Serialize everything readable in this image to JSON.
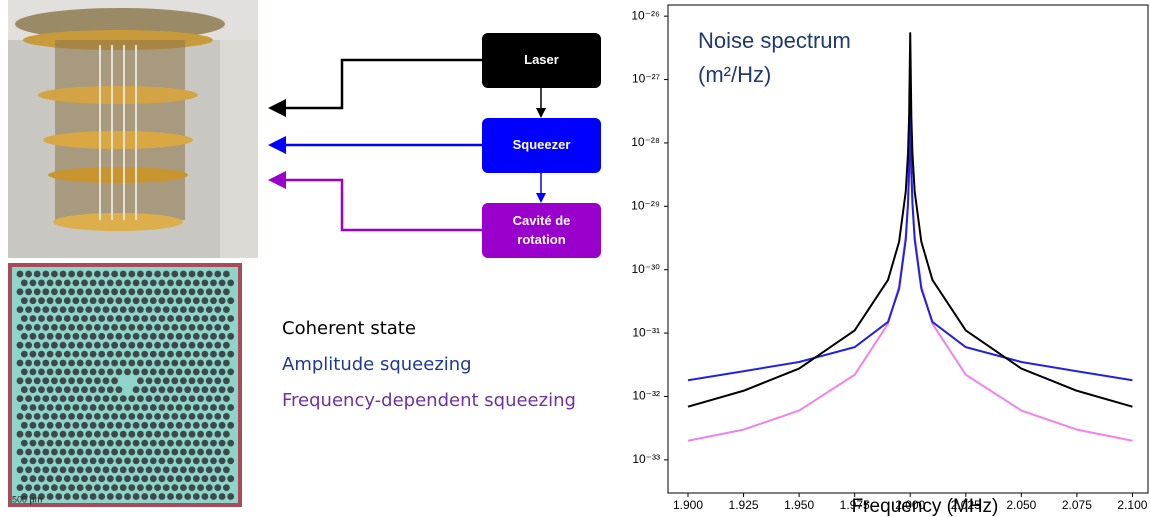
{
  "diagram": {
    "nodes": [
      {
        "label": "Laser",
        "color": "#000000"
      },
      {
        "label": "Squeezer",
        "color": "#0000ff"
      },
      {
        "label": "Cavité de rotation",
        "color": "#9900cc"
      }
    ]
  },
  "micrograph": {
    "scale_label": "500 µm"
  },
  "chart_data": {
    "type": "line",
    "title": "Noise spectrum",
    "ylabel": "(m²/Hz)",
    "xlabel": "Frequency (MHz)",
    "log_y": true,
    "x": [
      1.9,
      1.925,
      1.95,
      1.975,
      1.99,
      1.995,
      1.998,
      1.999,
      1.9995,
      2.0,
      2.0005,
      2.001,
      2.002,
      2.005,
      2.01,
      2.025,
      2.05,
      2.075,
      2.1
    ],
    "series": [
      {
        "name": "Coherent state",
        "color": "#000000",
        "text_color": "#000000",
        "values": [
          6.9e-33,
          1.23e-32,
          2.76e-32,
          1.1e-31,
          6.9e-31,
          2.76e-30,
          1.72e-29,
          6.8e-29,
          2.6e-28,
          5.4e-27,
          2.6e-28,
          6.8e-29,
          1.72e-29,
          2.76e-30,
          6.9e-31,
          1.1e-31,
          2.76e-32,
          1.23e-32,
          6.9e-33
        ]
      },
      {
        "name": "Amplitude squeezing",
        "color": "#2222dd",
        "text_color": "#1f3a93",
        "values": [
          1.8e-32,
          2.5e-32,
          3.5e-32,
          6e-32,
          1.5e-31,
          5e-31,
          3e-30,
          1.1e-29,
          4e-29,
          5e-28,
          4e-29,
          1.1e-29,
          3e-30,
          5e-31,
          1.5e-31,
          6e-32,
          3.5e-32,
          2.5e-32,
          1.8e-32
        ]
      },
      {
        "name": "Frequency-dependent squeezing",
        "color": "#ee82ee",
        "text_color": "#7030a0",
        "values": [
          2e-33,
          3e-33,
          6e-33,
          2.2e-32,
          1.4e-31,
          5.5e-31,
          3.4e-30,
          1.2e-29,
          3e-29,
          5.5e-29,
          3e-29,
          1.2e-29,
          3.4e-30,
          5.5e-31,
          1.4e-31,
          2.2e-32,
          6e-33,
          3e-33,
          2e-33
        ]
      }
    ],
    "xlim": [
      1.891,
      2.107
    ],
    "ylim": [
      3e-34,
      1.5e-26
    ],
    "xticks": [
      {
        "value": 1.9,
        "label": "1.900"
      },
      {
        "value": 1.925,
        "label": "1.925"
      },
      {
        "value": 1.95,
        "label": "1.950"
      },
      {
        "value": 1.975,
        "label": "1.975"
      },
      {
        "value": 2.0,
        "label": "2.000"
      },
      {
        "value": 2.025,
        "label": "2.025"
      },
      {
        "value": 2.05,
        "label": "2.050"
      },
      {
        "value": 2.075,
        "label": "2.075"
      },
      {
        "value": 2.1,
        "label": "2.100"
      }
    ],
    "yticks": [
      {
        "value": 1e-33,
        "label": "10⁻³³"
      },
      {
        "value": 1e-32,
        "label": "10⁻³²"
      },
      {
        "value": 1e-31,
        "label": "10⁻³¹"
      },
      {
        "value": 1e-30,
        "label": "10⁻³⁰"
      },
      {
        "value": 1e-29,
        "label": "10⁻²⁹"
      },
      {
        "value": 1e-28,
        "label": "10⁻²⁸"
      },
      {
        "value": 1e-27,
        "label": "10⁻²⁷"
      },
      {
        "value": 1e-26,
        "label": "10⁻²⁶"
      }
    ]
  }
}
